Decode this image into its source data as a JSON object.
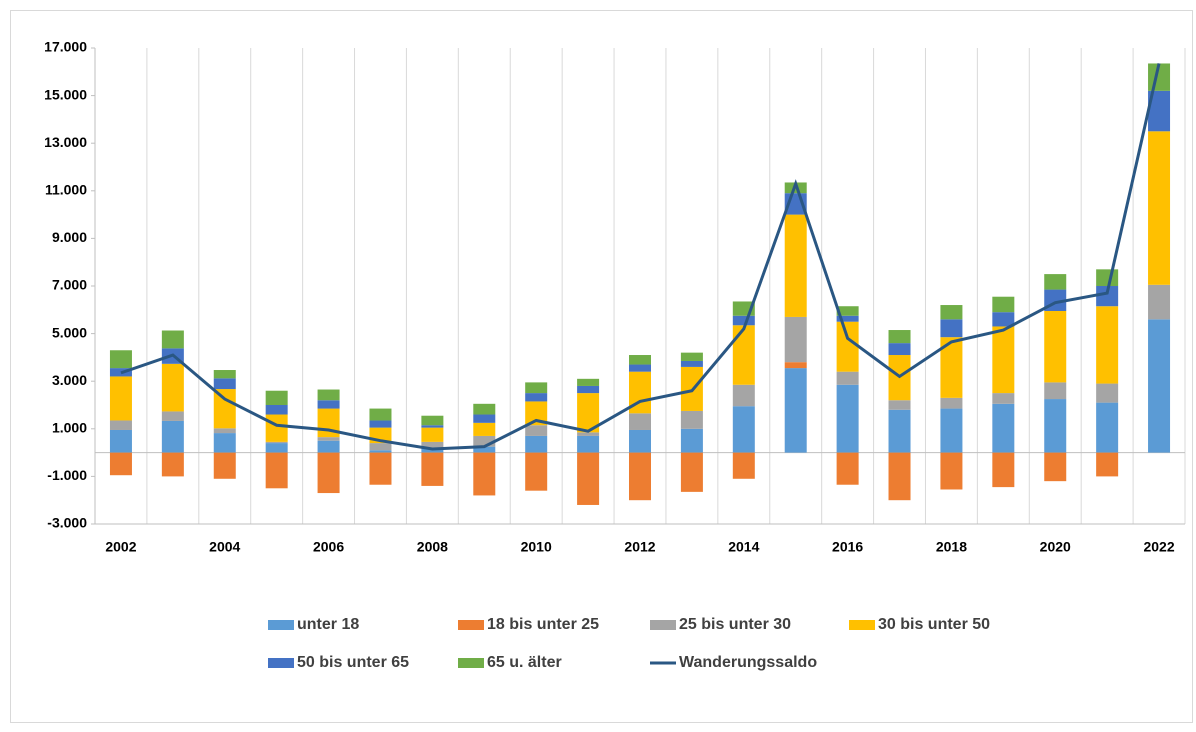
{
  "chart_data": {
    "type": "bar",
    "stacked": true,
    "categories": [
      "2002",
      null,
      "2004",
      null,
      "2006",
      null,
      "2008",
      null,
      "2010",
      null,
      "2012",
      null,
      "2014",
      null,
      "2016",
      null,
      "2018",
      null,
      "2020",
      null,
      "2022"
    ],
    "ylim": [
      -3000,
      17000
    ],
    "yticks": [
      {
        "value": -3000,
        "label": "-3.000"
      },
      {
        "value": -1000,
        "label": "-1.000"
      },
      {
        "value": 1000,
        "label": "1.000"
      },
      {
        "value": 3000,
        "label": "3.000"
      },
      {
        "value": 5000,
        "label": "5.000"
      },
      {
        "value": 7000,
        "label": "7.000"
      },
      {
        "value": 9000,
        "label": "9.000"
      },
      {
        "value": 11000,
        "label": "11.000"
      },
      {
        "value": 13000,
        "label": "13.000"
      },
      {
        "value": 15000,
        "label": "15.000"
      },
      {
        "value": 17000,
        "label": "17.000"
      }
    ],
    "grid": "x",
    "series": [
      {
        "name": "unter 18",
        "color": "#5b9bd5",
        "values": [
          950,
          1330,
          820,
          400,
          500,
          100,
          200,
          250,
          700,
          700,
          950,
          1000,
          1950,
          3550,
          2850,
          1800,
          1850,
          2050,
          2250,
          2100,
          5600
        ]
      },
      {
        "name": "18 bis unter 25",
        "color": "#ed7d31",
        "values": [
          -950,
          -1000,
          -1100,
          -1500,
          -1700,
          -1350,
          -1400,
          -1800,
          -1600,
          -2200,
          -2000,
          -1650,
          -1100,
          250,
          -1350,
          -2000,
          -1550,
          -1450,
          -1200,
          -1000,
          0
        ]
      },
      {
        "name": "25 bis unter 30",
        "color": "#a5a5a5",
        "values": [
          400,
          400,
          200,
          50,
          150,
          300,
          250,
          450,
          450,
          150,
          700,
          750,
          900,
          1900,
          550,
          400,
          450,
          450,
          700,
          800,
          1450
        ]
      },
      {
        "name": "30 bis unter 50",
        "color": "#ffc000",
        "values": [
          1850,
          2000,
          1650,
          1150,
          1200,
          650,
          600,
          550,
          1000,
          1650,
          1750,
          1850,
          2500,
          4300,
          2100,
          1900,
          2550,
          2800,
          3000,
          3250,
          6450
        ]
      },
      {
        "name": "50 bis unter 65",
        "color": "#4472c4",
        "values": [
          350,
          650,
          450,
          400,
          350,
          300,
          100,
          350,
          350,
          300,
          300,
          250,
          400,
          900,
          250,
          500,
          750,
          600,
          900,
          850,
          1700
        ]
      },
      {
        "name": "65 u. älter",
        "color": "#70ad47",
        "values": [
          750,
          750,
          350,
          600,
          450,
          500,
          400,
          450,
          450,
          300,
          400,
          350,
          600,
          450,
          400,
          550,
          600,
          650,
          650,
          700,
          1150
        ]
      },
      {
        "name": "Wanderungssaldo",
        "type": "line",
        "color": "#2a5783",
        "values": [
          3350,
          4100,
          2250,
          1150,
          950,
          500,
          150,
          250,
          1350,
          900,
          2150,
          2600,
          5200,
          11300,
          4800,
          3200,
          4650,
          5150,
          6300,
          6700,
          16350
        ]
      }
    ]
  }
}
